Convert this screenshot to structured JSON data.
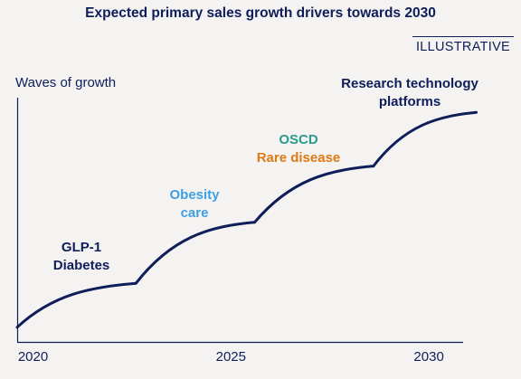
{
  "chart_data": {
    "type": "line",
    "title": "Expected primary sales growth drivers towards 2030",
    "badge": "ILLUSTRATIVE",
    "ylabel": "Waves of growth",
    "xlabel": "",
    "xlim": [
      2019.6,
      2031.3
    ],
    "ylim": [
      0,
      1
    ],
    "x_ticks": [
      2020,
      2025,
      2030
    ],
    "grid": false,
    "colors": {
      "line": "#0f1e5a",
      "glp1": "#0f1e5a",
      "obesity": "#3e9fe3",
      "oscd": "#2a9a8f",
      "rare": "#df7a12",
      "research": "#0f1e5a"
    },
    "waves": [
      {
        "x": [
          2019.6,
          2022.6
        ],
        "y": [
          0.06,
          0.24
        ]
      },
      {
        "x": [
          2022.6,
          2025.6
        ],
        "y": [
          0.24,
          0.49
        ]
      },
      {
        "x": [
          2025.6,
          2028.6
        ],
        "y": [
          0.49,
          0.72
        ]
      },
      {
        "x": [
          2028.6,
          2031.2
        ],
        "y": [
          0.72,
          0.94
        ]
      }
    ],
    "annotations": {
      "glp1_line1": "GLP-1",
      "glp1_line2": "Diabetes",
      "obesity_line1": "Obesity",
      "obesity_line2": "care",
      "oscd": "OSCD",
      "rare": "Rare disease",
      "research_line1": "Research technology",
      "research_line2": "platforms"
    }
  }
}
